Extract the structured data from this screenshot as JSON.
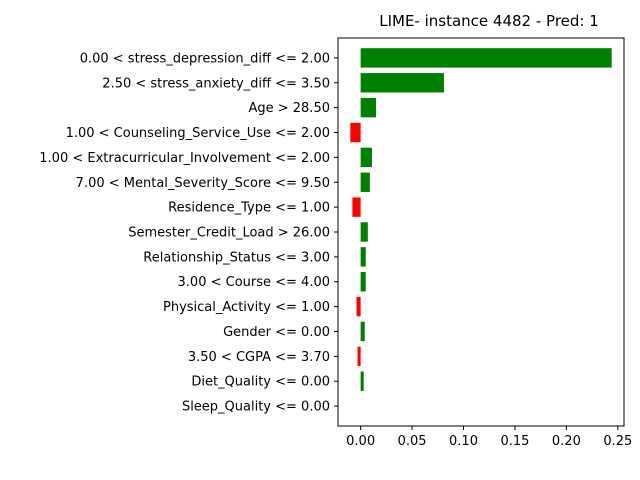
{
  "chart_data": {
    "type": "bar",
    "orientation": "horizontal",
    "title": "LIME- instance 4482 - Pred: 1",
    "xlabel": "",
    "ylabel": "",
    "xlim": [
      -0.022,
      0.256
    ],
    "xticks": [
      0.0,
      0.05,
      0.1,
      0.15,
      0.2,
      0.25
    ],
    "xtick_labels": [
      "0.00",
      "0.05",
      "0.10",
      "0.15",
      "0.20",
      "0.25"
    ],
    "grid": false,
    "colors": {
      "positive": "#008000",
      "negative": "#ff0000"
    },
    "categories": [
      "0.00 < stress_depression_diff <= 2.00",
      "2.50 < stress_anxiety_diff <= 3.50",
      "Age > 28.50",
      "1.00 < Counseling_Service_Use <= 2.00",
      "1.00 < Extracurricular_Involvement <= 2.00",
      "7.00 < Mental_Severity_Score <= 9.50",
      "Residence_Type <= 1.00",
      "Semester_Credit_Load > 26.00",
      "Relationship_Status <= 3.00",
      "3.00 < Course <= 4.00",
      "Physical_Activity <= 1.00",
      "Gender <= 0.00",
      "3.50 < CGPA <= 3.70",
      "Diet_Quality <= 0.00",
      "Sleep_Quality <= 0.00"
    ],
    "values": [
      0.244,
      0.081,
      0.015,
      -0.01,
      0.011,
      0.009,
      -0.008,
      0.007,
      0.005,
      0.005,
      -0.004,
      0.004,
      -0.003,
      0.003,
      0.0
    ]
  }
}
